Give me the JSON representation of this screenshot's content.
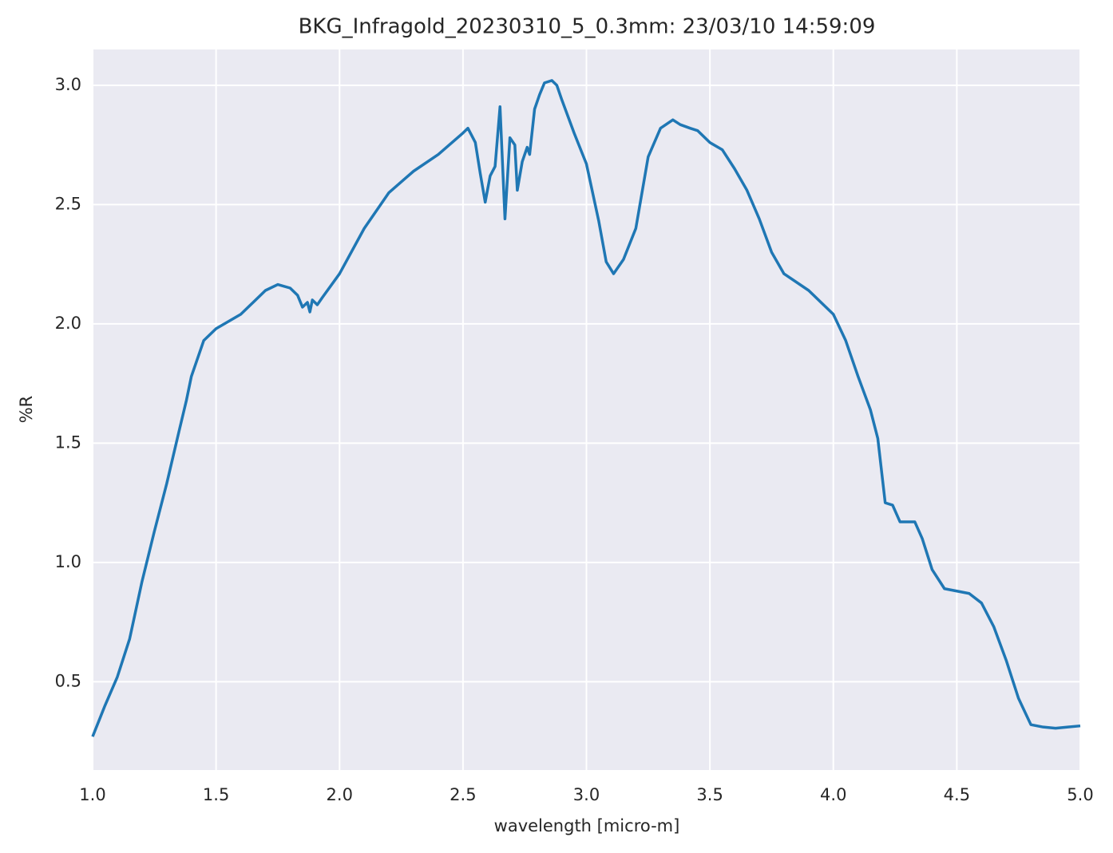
{
  "chart_data": {
    "type": "line",
    "title": "BKG_Infragold_20230310_5_0.3mm:  23/03/10 14:59:09",
    "x_label": "wavelength [micro-m]",
    "y_label": "%R",
    "x": [
      1.0,
      1.05,
      1.1,
      1.15,
      1.2,
      1.25,
      1.3,
      1.35,
      1.38,
      1.4,
      1.45,
      1.5,
      1.55,
      1.6,
      1.65,
      1.7,
      1.75,
      1.8,
      1.83,
      1.85,
      1.87,
      1.88,
      1.89,
      1.91,
      1.93,
      2.0,
      2.1,
      2.2,
      2.3,
      2.4,
      2.5,
      2.52,
      2.55,
      2.57,
      2.59,
      2.61,
      2.63,
      2.65,
      2.67,
      2.69,
      2.71,
      2.72,
      2.74,
      2.76,
      2.77,
      2.79,
      2.81,
      2.83,
      2.86,
      2.88,
      2.9,
      2.95,
      3.0,
      3.05,
      3.08,
      3.11,
      3.15,
      3.2,
      3.25,
      3.3,
      3.35,
      3.38,
      3.42,
      3.45,
      3.5,
      3.55,
      3.6,
      3.65,
      3.7,
      3.75,
      3.8,
      3.9,
      4.0,
      4.05,
      4.1,
      4.15,
      4.18,
      4.21,
      4.24,
      4.27,
      4.3,
      4.33,
      4.36,
      4.4,
      4.45,
      4.5,
      4.55,
      4.6,
      4.65,
      4.7,
      4.75,
      4.8,
      4.85,
      4.9,
      4.95,
      5.0
    ],
    "series": [
      {
        "name": "%R",
        "color": "#1f77b4",
        "values": [
          0.27,
          0.4,
          0.52,
          0.68,
          0.92,
          1.13,
          1.33,
          1.55,
          1.68,
          1.78,
          1.93,
          1.98,
          2.01,
          2.04,
          2.09,
          2.14,
          2.165,
          2.15,
          2.12,
          2.07,
          2.09,
          2.05,
          2.1,
          2.08,
          2.11,
          2.21,
          2.4,
          2.55,
          2.64,
          2.71,
          2.8,
          2.82,
          2.76,
          2.63,
          2.51,
          2.62,
          2.66,
          2.91,
          2.44,
          2.78,
          2.75,
          2.56,
          2.68,
          2.74,
          2.71,
          2.9,
          2.96,
          3.01,
          3.02,
          3.0,
          2.94,
          2.8,
          2.67,
          2.43,
          2.26,
          2.21,
          2.27,
          2.4,
          2.7,
          2.82,
          2.855,
          2.835,
          2.82,
          2.81,
          2.76,
          2.73,
          2.65,
          2.56,
          2.44,
          2.3,
          2.21,
          2.14,
          2.04,
          1.93,
          1.78,
          1.64,
          1.52,
          1.25,
          1.24,
          1.17,
          1.17,
          1.17,
          1.1,
          0.97,
          0.89,
          0.88,
          0.87,
          0.83,
          0.73,
          0.59,
          0.43,
          0.32,
          0.31,
          0.305,
          0.31,
          0.315
        ]
      }
    ],
    "xlim": [
      1.0,
      5.0
    ],
    "xticks": [
      {
        "value": 1,
        "label": "1.0"
      },
      1.5,
      {
        "value": 2,
        "label": "2.0"
      },
      2.5,
      {
        "value": 3,
        "label": "3.0"
      },
      3.5,
      {
        "value": 4,
        "label": "4.0"
      },
      4.5,
      {
        "value": 5,
        "label": "5.0"
      }
    ],
    "ylim": [
      0.13,
      3.15
    ],
    "yticks": [
      0.5,
      {
        "value": 1,
        "label": "1.0"
      },
      1.5,
      {
        "value": 2,
        "label": "2.0"
      },
      2.5,
      {
        "value": 3,
        "label": "3.0"
      }
    ],
    "grid": true
  }
}
